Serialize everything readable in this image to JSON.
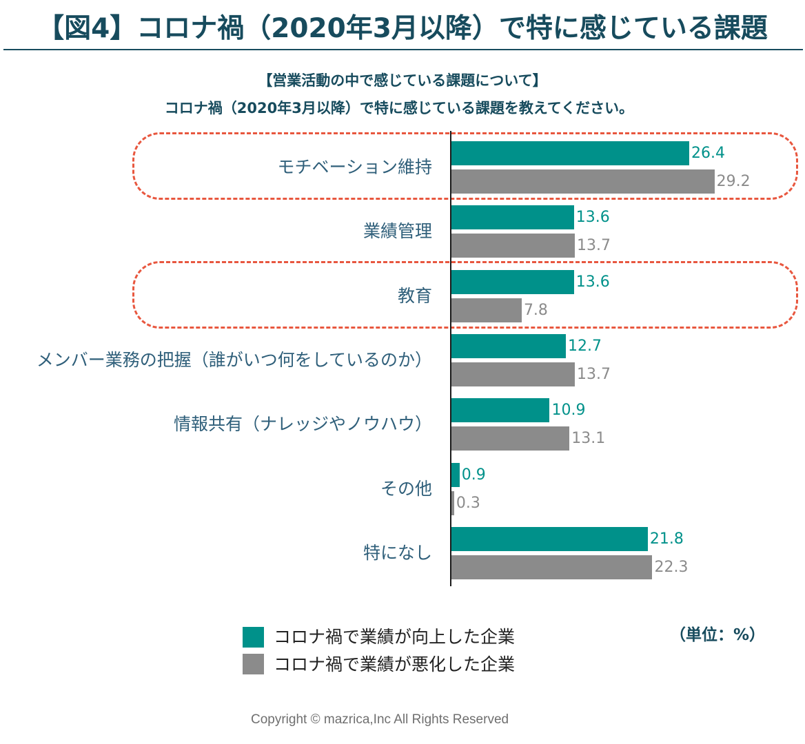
{
  "header": {
    "title": "【図4】コロナ禍（2020年3月以降）で特に感じている課題"
  },
  "colors": {
    "title": "#174b5d",
    "category_label": "#2f5f7a",
    "axis": "#1a1a1a",
    "highlight": "#e8573f",
    "legend_text": "#222222",
    "copyright": "#6f6f6f"
  },
  "chart_data": {
    "type": "bar",
    "orientation": "horizontal",
    "title": "【営業活動の中で感じている課題について】",
    "subtitle": "コロナ禍（2020年3月以降）で特に感じている課題を教えてください。",
    "categories": [
      "モチベーション維持",
      "業績管理",
      "教育",
      "メンバー業務の把握（誰がいつ何をしているのか）",
      "情報共有（ナレッジやノウハウ）",
      "その他",
      "特になし"
    ],
    "series": [
      {
        "name": "コロナ禍で業績が向上した企業",
        "color": "#00918a",
        "values": [
          26.4,
          13.6,
          13.6,
          12.7,
          10.9,
          0.9,
          21.8
        ]
      },
      {
        "name": "コロナ禍で業績が悪化した企業",
        "color": "#8b8b8b",
        "values": [
          29.2,
          13.7,
          7.8,
          13.7,
          13.1,
          0.3,
          22.3
        ]
      }
    ],
    "highlighted": [
      true,
      false,
      true,
      false,
      false,
      false,
      false
    ],
    "unit_label": "（単位：%）",
    "legend_position": "bottom",
    "grid": false
  },
  "footer": {
    "copyright": "Copyright © mazrica,Inc All Rights Reserved"
  }
}
